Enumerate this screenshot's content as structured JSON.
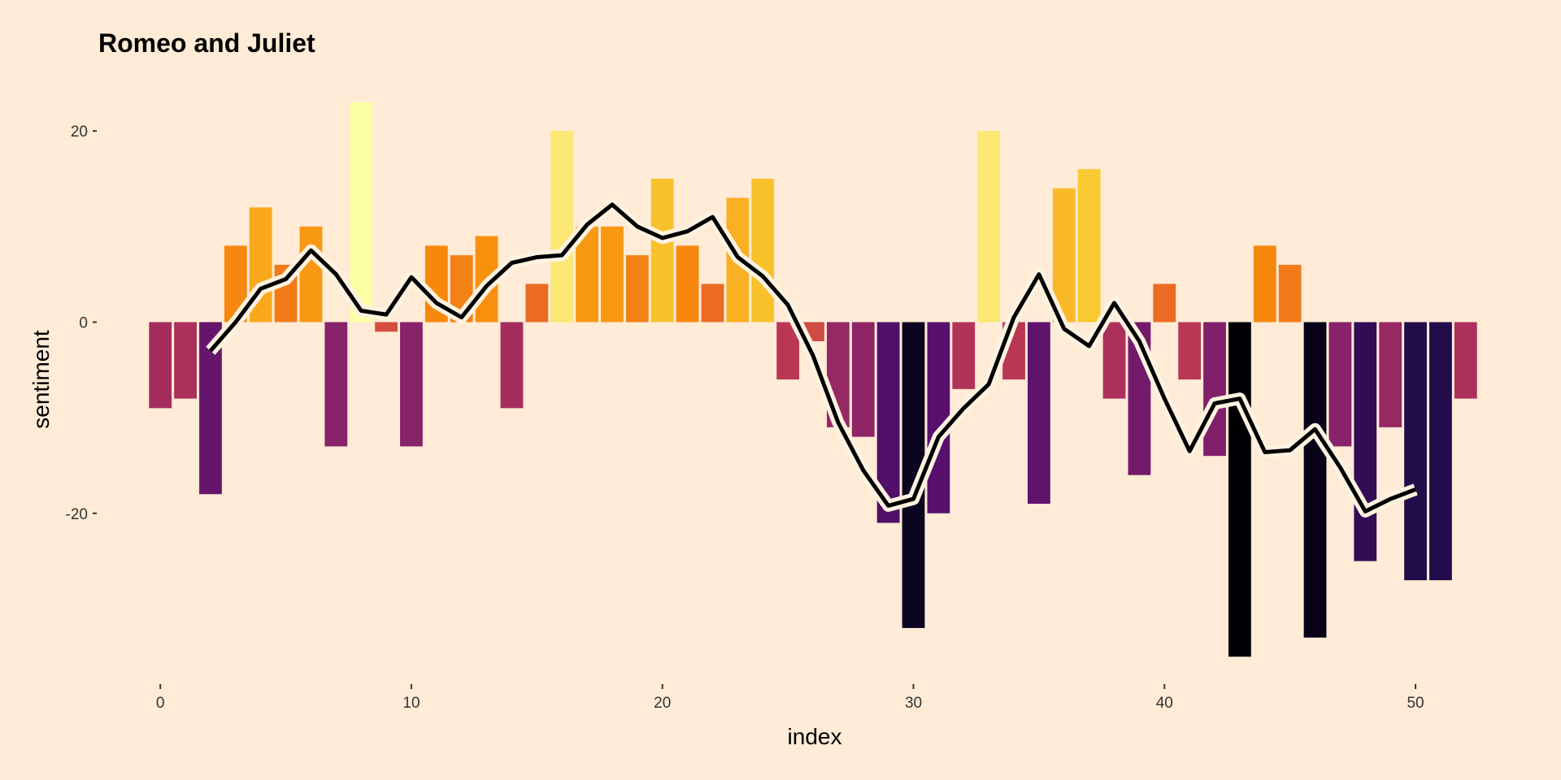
{
  "chart_data": {
    "type": "bar",
    "title": "Romeo and Juliet",
    "xlabel": "index",
    "ylabel": "sentiment",
    "xlim": [
      -2.5,
      54.5
    ],
    "ylim": [
      -36,
      23.5
    ],
    "x_ticks": [
      0,
      10,
      20,
      30,
      40,
      50
    ],
    "y_ticks": [
      -20,
      0,
      20
    ],
    "grid": false,
    "legend": "none",
    "colors": {
      "panel_background": "#FFEBD6",
      "halo": "#FFF2E0",
      "line": "#000000"
    },
    "bars": {
      "x": [
        0,
        1,
        2,
        3,
        4,
        5,
        6,
        7,
        8,
        9,
        10,
        11,
        12,
        13,
        14,
        15,
        16,
        17,
        18,
        19,
        20,
        21,
        22,
        23,
        24,
        25,
        26,
        27,
        28,
        29,
        30,
        31,
        32,
        33,
        34,
        35,
        36,
        37,
        38,
        39,
        40,
        41,
        42,
        43,
        44,
        45,
        46,
        47,
        48,
        49,
        50,
        51,
        52
      ],
      "values": [
        -9,
        -8,
        -18,
        8,
        12,
        6,
        10,
        -13,
        23,
        -1,
        -13,
        8,
        7,
        9,
        -9,
        4,
        20,
        10,
        10,
        7,
        15,
        8,
        4,
        13,
        15,
        -6,
        -2,
        -11,
        -12,
        -21,
        -32,
        -20,
        -7,
        20,
        -6,
        -19,
        14,
        16,
        -8,
        -16,
        4,
        -6,
        -14,
        -35,
        8,
        6,
        -33,
        -13,
        -25,
        -11,
        -27,
        -27,
        -8
      ]
    },
    "trend": {
      "x": [
        2,
        3,
        4,
        5,
        6,
        7,
        8,
        9,
        10,
        11,
        12,
        13,
        14,
        15,
        16,
        17,
        18,
        19,
        20,
        21,
        22,
        23,
        24,
        25,
        26,
        27,
        28,
        29,
        30,
        31,
        32,
        33,
        34,
        35,
        36,
        37,
        38,
        39,
        40,
        41,
        42,
        43,
        44,
        45,
        46,
        47,
        48,
        49,
        50
      ],
      "values": [
        -3,
        0,
        3.5,
        4.5,
        7.5,
        5,
        1.2,
        0.8,
        4.7,
        2,
        0.5,
        3.8,
        6.2,
        6.8,
        7,
        10.2,
        12.3,
        10,
        8.8,
        9.5,
        11,
        6.8,
        4.8,
        1.8,
        -3.5,
        -10.5,
        -15.5,
        -19.2,
        -18.5,
        -12,
        -9,
        -6.5,
        0.5,
        5,
        -0.7,
        -2.5,
        2,
        -2,
        -8,
        -13.5,
        -8.5,
        -8,
        -13.6,
        -13.4,
        -11.2,
        -15.2,
        -19.8,
        -18.5,
        -17.5
      ]
    }
  }
}
